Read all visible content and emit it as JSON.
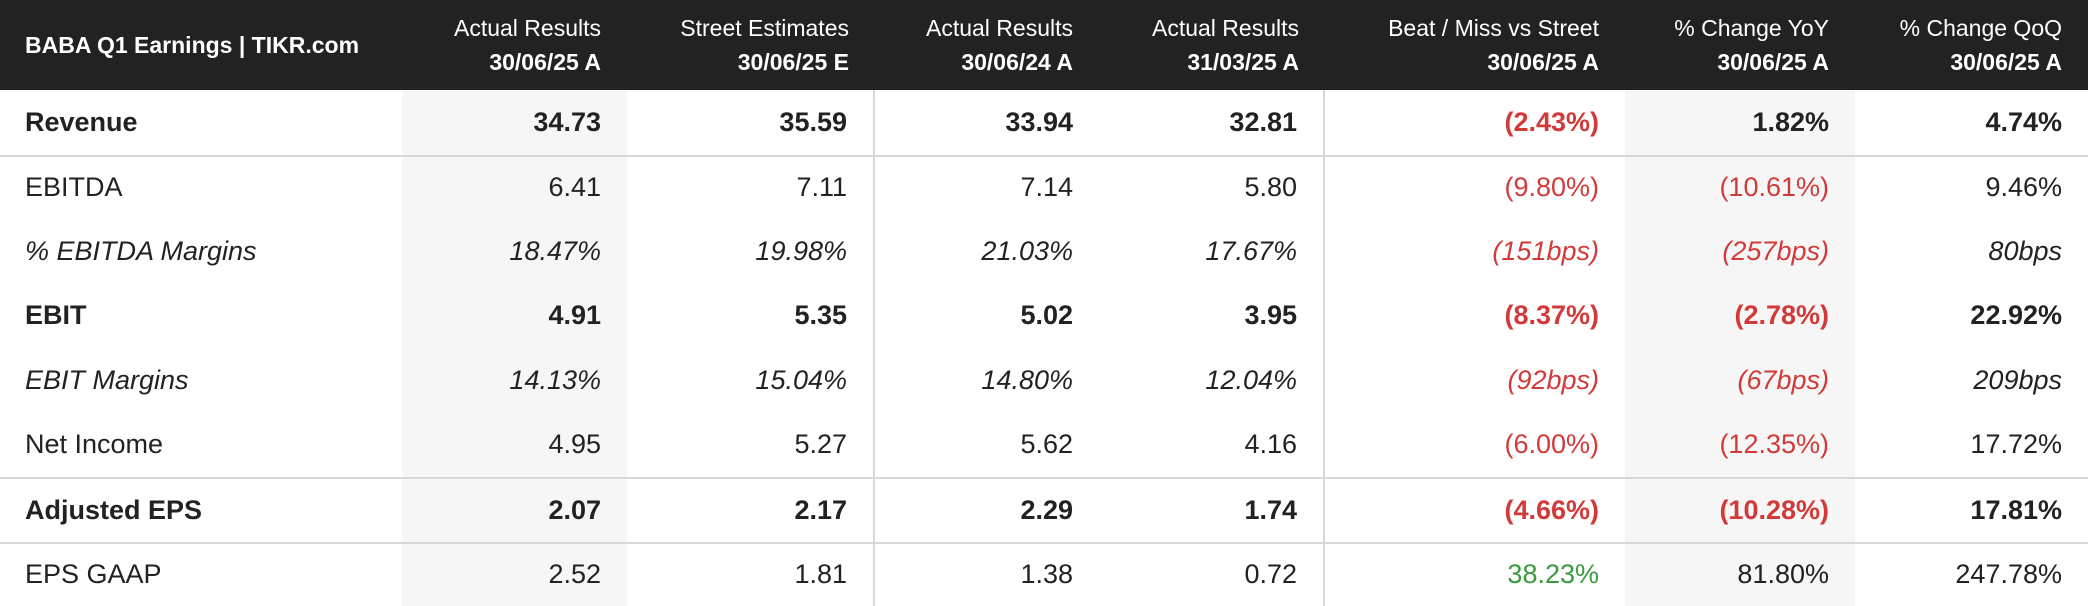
{
  "header": {
    "title": "BABA Q1 Earnings | TIKR.com"
  },
  "table": {
    "columns": [
      {
        "top": "Actual Results",
        "bottom": "30/06/25 A"
      },
      {
        "top": "Street Estimates",
        "bottom": "30/06/25 E"
      },
      {
        "top": "Actual Results",
        "bottom": "30/06/24 A"
      },
      {
        "top": "Actual Results",
        "bottom": "31/03/25 A"
      },
      {
        "top": "Beat / Miss vs Street",
        "bottom": "30/06/25 A"
      },
      {
        "top": "% Change YoY",
        "bottom": "30/06/25 A"
      },
      {
        "top": "% Change QoQ",
        "bottom": "30/06/25 A"
      }
    ],
    "rows": [
      {
        "label": "Revenue",
        "style": "bold",
        "cells": [
          "34.73",
          "35.59",
          "33.94",
          "32.81",
          "(2.43%)",
          "1.82%",
          "4.74%"
        ]
      },
      {
        "label": "EBITDA",
        "style": "normal",
        "cells": [
          "6.41",
          "7.11",
          "7.14",
          "5.80",
          "(9.80%)",
          "(10.61%)",
          "9.46%"
        ]
      },
      {
        "label": "% EBITDA Margins",
        "style": "italic",
        "cells": [
          "18.47%",
          "19.98%",
          "21.03%",
          "17.67%",
          "(151bps)",
          "(257bps)",
          "80bps"
        ]
      },
      {
        "label": "EBIT",
        "style": "bold",
        "cells": [
          "4.91",
          "5.35",
          "5.02",
          "3.95",
          "(8.37%)",
          "(2.78%)",
          "22.92%"
        ]
      },
      {
        "label": "EBIT Margins",
        "style": "italic",
        "cells": [
          "14.13%",
          "15.04%",
          "14.80%",
          "12.04%",
          "(92bps)",
          "(67bps)",
          "209bps"
        ]
      },
      {
        "label": "Net Income",
        "style": "normal",
        "cells": [
          "4.95",
          "5.27",
          "5.62",
          "4.16",
          "(6.00%)",
          "(12.35%)",
          "17.72%"
        ]
      },
      {
        "label": "Adjusted EPS",
        "style": "bold",
        "cells": [
          "2.07",
          "2.17",
          "2.29",
          "1.74",
          "(4.66%)",
          "(10.28%)",
          "17.81%"
        ]
      },
      {
        "label": "EPS GAAP",
        "style": "normal",
        "cells": [
          "2.52",
          "1.81",
          "1.38",
          "0.72",
          "38.23%",
          "81.80%",
          "247.78%"
        ]
      }
    ]
  }
}
